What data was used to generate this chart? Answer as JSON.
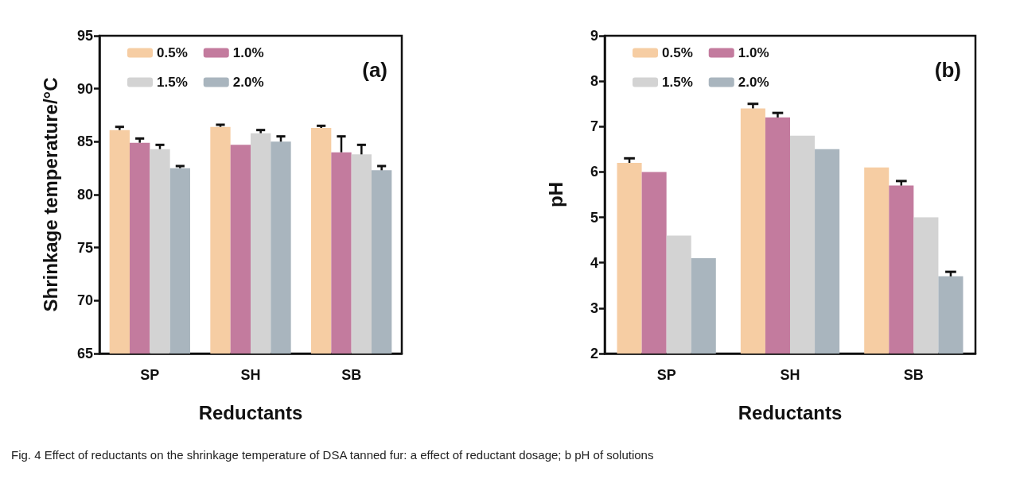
{
  "chart_data": [
    {
      "type": "bar",
      "categories": [
        "SP",
        "SH",
        "SB"
      ],
      "xlabel": "Reductants",
      "ylabel": "Shrinkage temperature/°C",
      "ylim": [
        65,
        95
      ],
      "yticks": [
        65,
        70,
        75,
        80,
        85,
        90,
        95
      ],
      "grid": false,
      "legend": "top left",
      "annotations": [
        "(a)",
        "Fig. 4 Effect of reductants on the shrinkage temperature of DSA tanned fur: a effect of reductant dosage; b pH of solutions"
      ],
      "series": [
        {
          "name": "0.5%",
          "color": "#f6cda3",
          "values": [
            86.1,
            86.4,
            86.3
          ],
          "errors": [
            [
              86.1,
              86.4
            ],
            [
              86.4,
              86.6
            ],
            [
              86.3,
              86.5
            ]
          ]
        },
        {
          "name": "1.0%",
          "color": "#c37b9e",
          "values": [
            84.9,
            84.7,
            84.0
          ],
          "errors": [
            [
              84.9,
              85.3
            ],
            null,
            [
              84.0,
              85.5
            ]
          ]
        },
        {
          "name": "1.5%",
          "color": "#d3d3d3",
          "values": [
            84.3,
            85.8,
            83.8
          ],
          "errors": [
            [
              84.3,
              84.7
            ],
            [
              85.8,
              86.1
            ],
            [
              83.8,
              84.7
            ]
          ]
        },
        {
          "name": "2.0%",
          "color": "#a9b5be",
          "values": [
            82.5,
            85.0,
            82.3
          ],
          "errors": [
            [
              82.5,
              82.7
            ],
            [
              85.0,
              85.5
            ],
            [
              82.3,
              82.7
            ]
          ]
        }
      ]
    },
    {
      "type": "bar",
      "categories": [
        "SP",
        "SH",
        "SB"
      ],
      "xlabel": "Reductants",
      "ylabel": "pH",
      "ylim": [
        2,
        9
      ],
      "yticks": [
        2,
        3,
        4,
        5,
        6,
        7,
        8,
        9
      ],
      "grid": false,
      "legend": "top left",
      "annotations": [
        "(b)"
      ],
      "series": [
        {
          "name": "0.5%",
          "color": "#f6cda3",
          "values": [
            6.2,
            7.4,
            6.1
          ],
          "errors": [
            [
              6.2,
              6.3
            ],
            [
              7.4,
              7.5
            ],
            null
          ]
        },
        {
          "name": "1.0%",
          "color": "#c37b9e",
          "values": [
            6.0,
            7.2,
            5.7
          ],
          "errors": [
            null,
            [
              7.2,
              7.3
            ],
            [
              5.7,
              5.8
            ]
          ]
        },
        {
          "name": "1.5%",
          "color": "#d3d3d3",
          "values": [
            4.6,
            6.8,
            5.0
          ]
        },
        {
          "name": "2.0%",
          "color": "#a9b5be",
          "values": [
            4.1,
            6.5,
            3.7
          ],
          "errors": [
            null,
            null,
            [
              3.7,
              3.8
            ]
          ]
        }
      ]
    }
  ]
}
